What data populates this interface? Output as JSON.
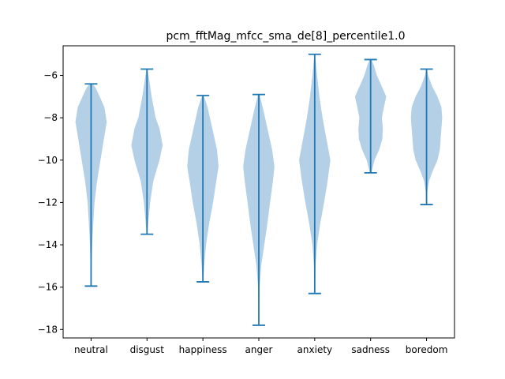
{
  "chart_data": {
    "type": "violin",
    "title": "pcm_fftMag_mfcc_sma_de[8]_percentile1.0",
    "xlabel": "",
    "ylabel": "",
    "ylim": [
      -18.4,
      -4.6
    ],
    "yticks": [
      -18,
      -16,
      -14,
      -12,
      -10,
      -8,
      -6
    ],
    "ytick_labels": [
      "−18",
      "−16",
      "−14",
      "−12",
      "−10",
      "−8",
      "−6"
    ],
    "categories": [
      "neutral",
      "disgust",
      "happiness",
      "anger",
      "anxiety",
      "sadness",
      "boredom"
    ],
    "series": [
      {
        "category": "neutral",
        "min": -15.95,
        "max": -6.4,
        "density": [
          [
            -15.95,
            0.01
          ],
          [
            -15,
            0.03
          ],
          [
            -14,
            0.07
          ],
          [
            -13,
            0.14
          ],
          [
            -12,
            0.22
          ],
          [
            -11,
            0.38
          ],
          [
            -10,
            0.6
          ],
          [
            -9,
            0.82
          ],
          [
            -8.2,
            1.0
          ],
          [
            -7.5,
            0.85
          ],
          [
            -7,
            0.55
          ],
          [
            -6.6,
            0.3
          ],
          [
            -6.4,
            0.1
          ]
        ]
      },
      {
        "category": "disgust",
        "min": -13.5,
        "max": -5.7,
        "density": [
          [
            -13.5,
            0.02
          ],
          [
            -13,
            0.08
          ],
          [
            -12,
            0.2
          ],
          [
            -11,
            0.4
          ],
          [
            -10,
            0.8
          ],
          [
            -9.3,
            1.0
          ],
          [
            -8.5,
            0.8
          ],
          [
            -8,
            0.55
          ],
          [
            -7,
            0.3
          ],
          [
            -6,
            0.1
          ],
          [
            -5.7,
            0.02
          ]
        ]
      },
      {
        "category": "happiness",
        "min": -15.75,
        "max": -6.95,
        "density": [
          [
            -15.75,
            0.02
          ],
          [
            -15,
            0.08
          ],
          [
            -14,
            0.2
          ],
          [
            -13,
            0.4
          ],
          [
            -12,
            0.65
          ],
          [
            -11,
            0.85
          ],
          [
            -10.3,
            1.0
          ],
          [
            -9.5,
            0.9
          ],
          [
            -8.5,
            0.6
          ],
          [
            -7.5,
            0.3
          ],
          [
            -6.95,
            0.05
          ]
        ]
      },
      {
        "category": "anger",
        "min": -17.8,
        "max": -6.9,
        "density": [
          [
            -17.8,
            0.01
          ],
          [
            -17,
            0.02
          ],
          [
            -16,
            0.05
          ],
          [
            -15,
            0.15
          ],
          [
            -14,
            0.35
          ],
          [
            -13,
            0.55
          ],
          [
            -12,
            0.72
          ],
          [
            -11,
            0.9
          ],
          [
            -10.3,
            1.0
          ],
          [
            -9.5,
            0.85
          ],
          [
            -8.5,
            0.55
          ],
          [
            -7.5,
            0.25
          ],
          [
            -6.9,
            0.05
          ]
        ]
      },
      {
        "category": "anxiety",
        "min": -16.3,
        "max": -5.0,
        "density": [
          [
            -16.3,
            0.01
          ],
          [
            -15,
            0.05
          ],
          [
            -14,
            0.15
          ],
          [
            -13,
            0.35
          ],
          [
            -12,
            0.6
          ],
          [
            -11,
            0.82
          ],
          [
            -10,
            1.0
          ],
          [
            -9,
            0.75
          ],
          [
            -8,
            0.5
          ],
          [
            -7,
            0.3
          ],
          [
            -6,
            0.15
          ],
          [
            -5,
            0.02
          ]
        ]
      },
      {
        "category": "sadness",
        "min": -10.6,
        "max": -5.25,
        "density": [
          [
            -10.6,
            0.05
          ],
          [
            -10,
            0.25
          ],
          [
            -9.5,
            0.55
          ],
          [
            -9,
            0.75
          ],
          [
            -8.5,
            0.78
          ],
          [
            -8,
            0.72
          ],
          [
            -7.5,
            0.85
          ],
          [
            -7,
            1.0
          ],
          [
            -6.5,
            0.7
          ],
          [
            -6,
            0.4
          ],
          [
            -5.5,
            0.2
          ],
          [
            -5.25,
            0.05
          ]
        ]
      },
      {
        "category": "boredom",
        "min": -12.1,
        "max": -5.7,
        "density": [
          [
            -12.1,
            0.02
          ],
          [
            -11.5,
            0.05
          ],
          [
            -11,
            0.15
          ],
          [
            -10.5,
            0.4
          ],
          [
            -10,
            0.7
          ],
          [
            -9.5,
            0.85
          ],
          [
            -9,
            0.9
          ],
          [
            -8.5,
            0.95
          ],
          [
            -8,
            1.0
          ],
          [
            -7.5,
            0.95
          ],
          [
            -7,
            0.7
          ],
          [
            -6.5,
            0.35
          ],
          [
            -6,
            0.1
          ],
          [
            -5.7,
            0.02
          ]
        ]
      }
    ],
    "grid": false,
    "legend": "none",
    "colors": {
      "body": "#b4d0e6",
      "line": "#1f77b4"
    }
  }
}
